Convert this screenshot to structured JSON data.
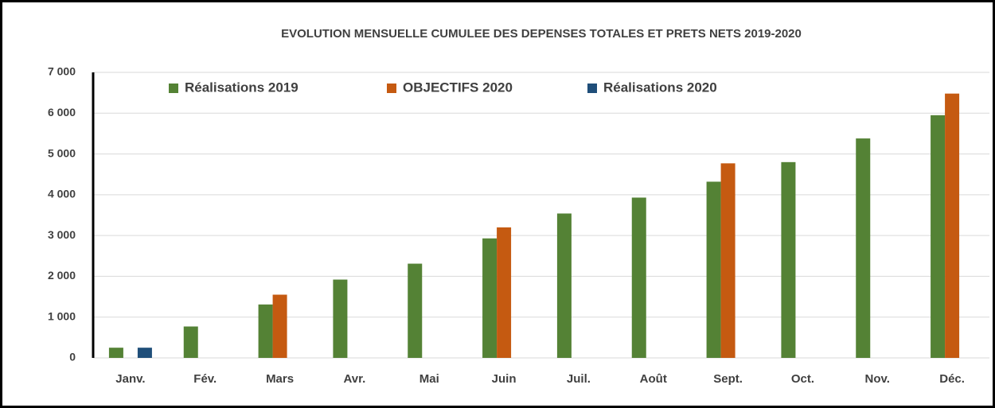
{
  "chart_data": {
    "type": "bar",
    "title": "EVOLUTION MENSUELLE CUMULEE DES DEPENSES TOTALES ET PRETS NETS 2019-2020",
    "categories": [
      "Janv.",
      "Fév.",
      "Mars",
      "Avr.",
      "Mai",
      "Juin",
      "Juil.",
      "Août",
      "Sept.",
      "Oct.",
      "Nov.",
      "Déc."
    ],
    "series": [
      {
        "name": "Réalisations 2019",
        "color": "#548235",
        "values": [
          250,
          770,
          1310,
          1920,
          2310,
          2930,
          3540,
          3930,
          4320,
          4800,
          5380,
          5950
        ]
      },
      {
        "name": "OBJECTIFS 2020",
        "color": "#c55a11",
        "values": [
          null,
          null,
          1550,
          null,
          null,
          3200,
          null,
          null,
          4770,
          null,
          null,
          6480
        ]
      },
      {
        "name": "Réalisations 2020",
        "color": "#1f4e79",
        "values": [
          250,
          null,
          null,
          null,
          null,
          null,
          null,
          null,
          null,
          null,
          null,
          null
        ]
      }
    ],
    "ylim": [
      0,
      7000
    ],
    "yticks": [
      0,
      {
        "value": 1000,
        "label": "1 000"
      },
      {
        "value": 2000,
        "label": "2 000"
      },
      {
        "value": 3000,
        "label": "3 000"
      },
      {
        "value": 4000,
        "label": "4 000"
      },
      {
        "value": 5000,
        "label": "5 000"
      },
      {
        "value": 6000,
        "label": "6 000"
      },
      {
        "value": 7000,
        "label": "7 000"
      }
    ],
    "grid": true,
    "legend": "top"
  }
}
